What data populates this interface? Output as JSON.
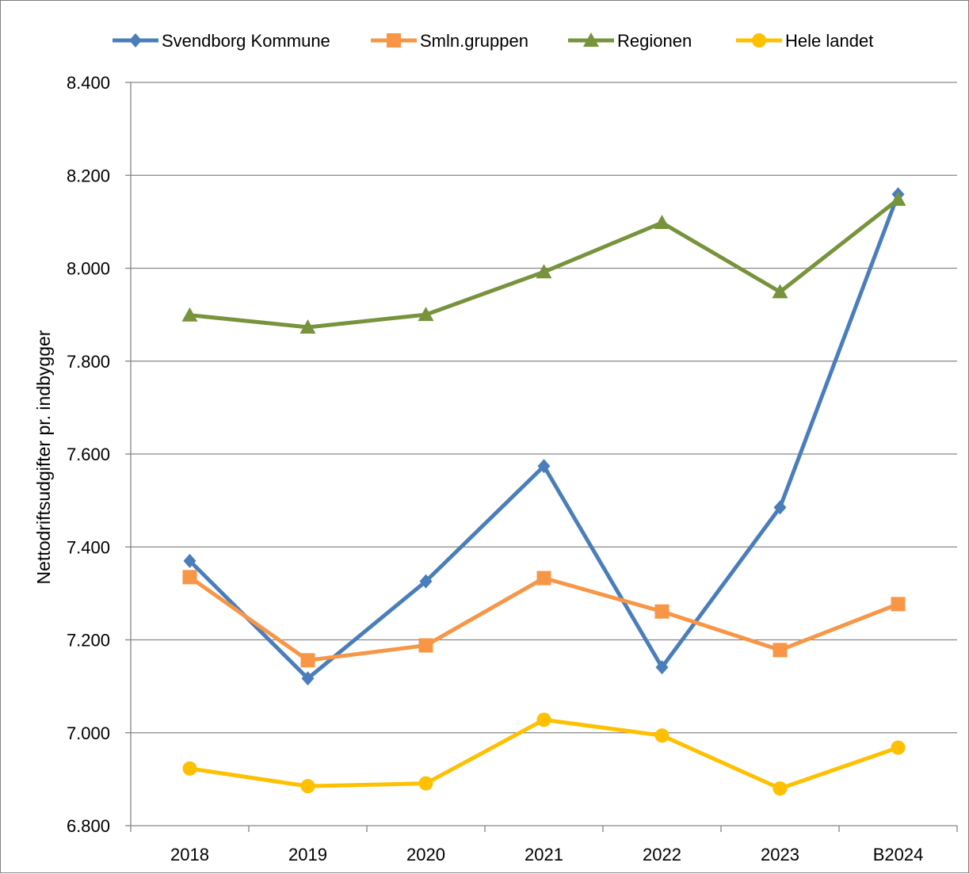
{
  "chart_data": {
    "type": "line",
    "categories": [
      "2018",
      "2019",
      "2020",
      "2021",
      "2022",
      "2023",
      "B2024"
    ],
    "ylabel": "Nettodriftsudgifter pr. indbygger",
    "xlabel": "",
    "ylim": [
      6800,
      8400
    ],
    "yticks": [
      6800,
      7000,
      7200,
      7400,
      7600,
      7800,
      8000,
      8200,
      8400
    ],
    "ytick_labels": [
      "6.800",
      "7.000",
      "7.200",
      "7.400",
      "7.600",
      "7.800",
      "8.000",
      "8.200",
      "8.400"
    ],
    "grid": "horizontal",
    "legend_position": "top",
    "series": [
      {
        "name": "Svendborg Kommune",
        "color": "#4a7ebb",
        "marker": "diamond",
        "values": [
          7370,
          7117,
          7326,
          7574,
          7141,
          7485,
          8159
        ]
      },
      {
        "name": "Smln.gruppen",
        "color": "#f79646",
        "marker": "square",
        "values": [
          7335,
          7156,
          7188,
          7333,
          7261,
          7178,
          7277
        ]
      },
      {
        "name": "Regionen",
        "color": "#77933c",
        "marker": "triangle",
        "values": [
          7899,
          7873,
          7900,
          7992,
          8098,
          7949,
          8148
        ]
      },
      {
        "name": "Hele landet",
        "color": "#ffc000",
        "marker": "circle",
        "values": [
          6923,
          6885,
          6891,
          7028,
          6994,
          6880,
          6968
        ]
      }
    ]
  }
}
